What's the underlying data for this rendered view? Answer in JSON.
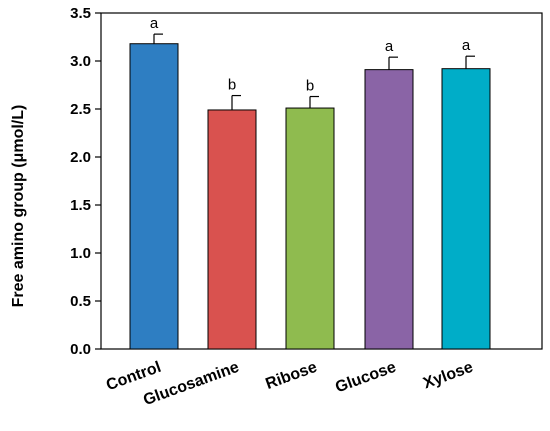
{
  "chart_data": {
    "type": "bar",
    "title": "",
    "xlabel": "",
    "ylabel": "Free amino group (μmol/L)",
    "ylim": [
      0,
      3.5
    ],
    "yticks": [
      "0.0",
      "0.5",
      "1.0",
      "1.5",
      "2.0",
      "2.5",
      "3.0",
      "3.5"
    ],
    "grid": false,
    "categories": [
      "Control",
      "Glucosamine",
      "Ribose",
      "Glucose",
      "Xylose"
    ],
    "values": [
      3.18,
      2.49,
      2.51,
      2.91,
      2.92
    ],
    "errors": [
      0.1,
      0.15,
      0.12,
      0.13,
      0.13
    ],
    "significance": [
      "a",
      "b",
      "b",
      "a",
      "a"
    ],
    "colors": [
      "#2e7ec2",
      "#d9524f",
      "#8fbb4f",
      "#8a64a6",
      "#00adc8"
    ]
  }
}
